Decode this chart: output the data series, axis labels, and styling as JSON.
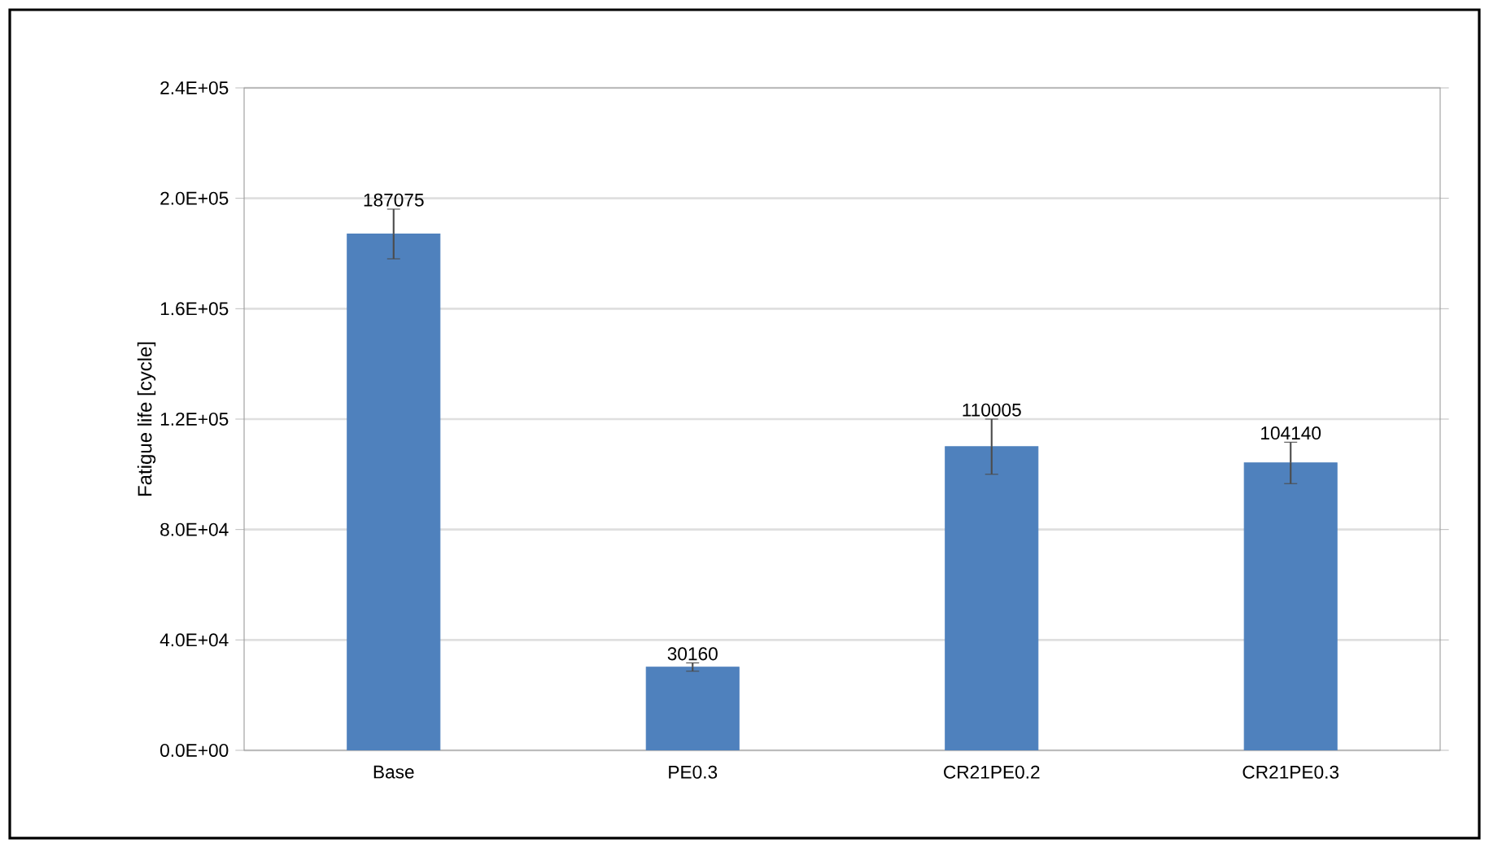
{
  "chart_data": {
    "type": "bar",
    "ylabel": "Fatigue life [cycle]",
    "categories": [
      "Base",
      "PE0.3",
      "CR21PE0.2",
      "CR21PE0.3"
    ],
    "values": [
      187075,
      30160,
      110005,
      104140
    ],
    "errors": [
      9000,
      1500,
      10000,
      7500
    ],
    "color": "#4f81bd",
    "ylim": [
      0,
      240000
    ],
    "yticks": [
      {
        "value": 0,
        "label": "0.0E+00"
      },
      {
        "value": 40000,
        "label": "4.0E+04"
      },
      {
        "value": 80000,
        "label": "8.0E+04"
      },
      {
        "value": 120000,
        "label": "1.2E+05"
      },
      {
        "value": 160000,
        "label": "1.6E+05"
      },
      {
        "value": 200000,
        "label": "2.0E+05"
      },
      {
        "value": 240000,
        "label": "2.4E+05"
      }
    ],
    "grid": "y",
    "data_labels": true
  }
}
